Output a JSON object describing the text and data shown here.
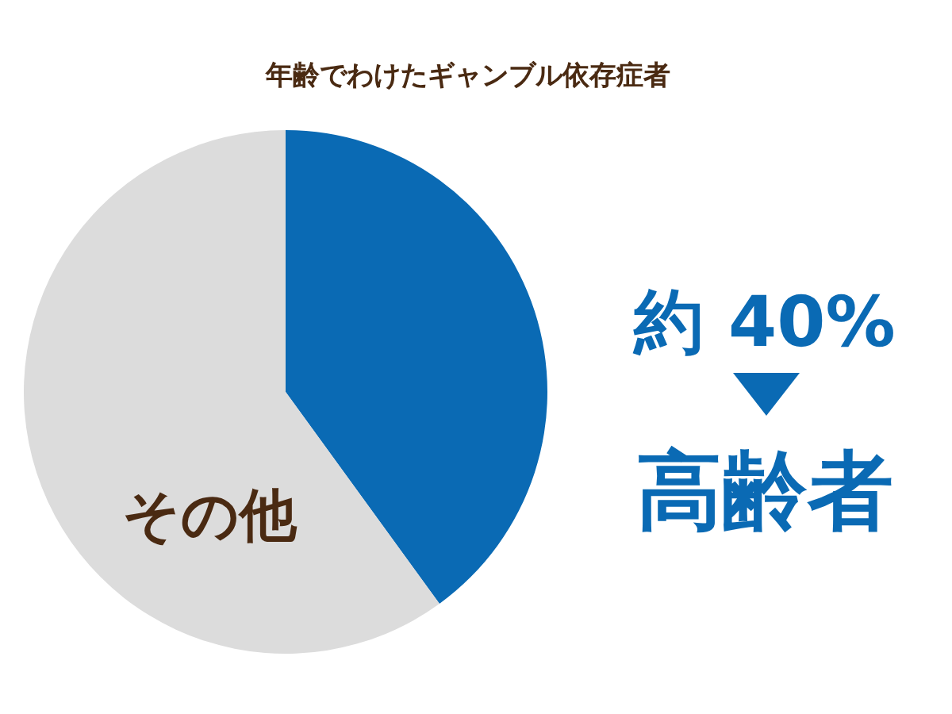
{
  "chart_data": {
    "type": "pie",
    "title": "年齢でわけたギャンブル依存症者",
    "categories": [
      "高齢者",
      "その他"
    ],
    "values": [
      40,
      60
    ],
    "colors": [
      "#0a6ab4",
      "#dcdcdc"
    ],
    "value_labels": [
      "約 40%",
      null
    ]
  }
}
